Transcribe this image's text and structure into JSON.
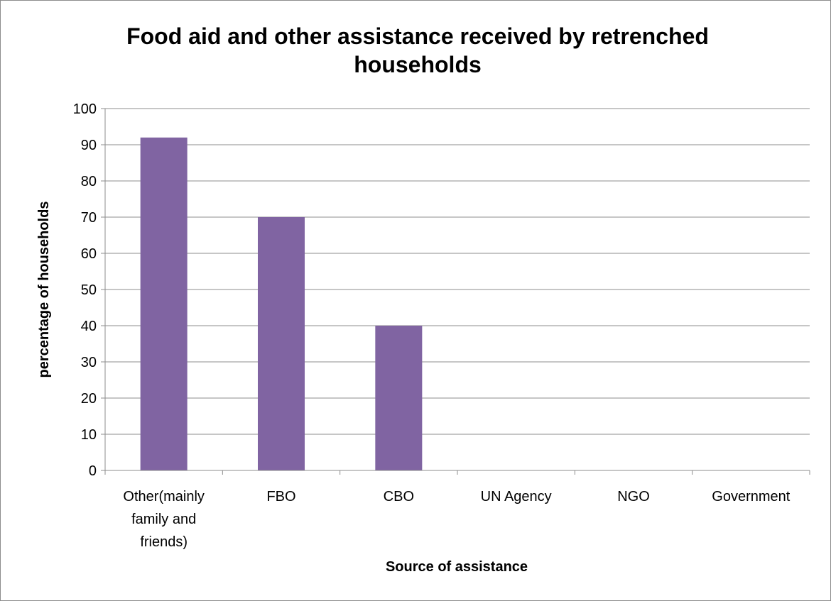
{
  "chart_data": {
    "type": "bar",
    "title": "Food aid and other assistance received by retrenched households",
    "title_lines": [
      "Food aid and other assistance received by retrenched",
      "households"
    ],
    "xlabel": "Source of assistance",
    "ylabel": "percentage of households",
    "categories": [
      "Other(mainly family and friends)",
      "FBO",
      "CBO",
      "UN Agency",
      "NGO",
      "Government"
    ],
    "category_lines": [
      [
        "Other(mainly",
        "family and",
        "friends)"
      ],
      [
        "FBO"
      ],
      [
        "CBO"
      ],
      [
        "UN Agency"
      ],
      [
        "NGO"
      ],
      [
        "Government"
      ]
    ],
    "values": [
      92,
      70,
      40,
      0,
      0,
      0
    ],
    "ylim": [
      0,
      100
    ],
    "yticks": [
      0,
      10,
      20,
      30,
      40,
      50,
      60,
      70,
      80,
      90,
      100
    ],
    "grid": true,
    "legend": "none",
    "bar_color": "#8064a2"
  }
}
